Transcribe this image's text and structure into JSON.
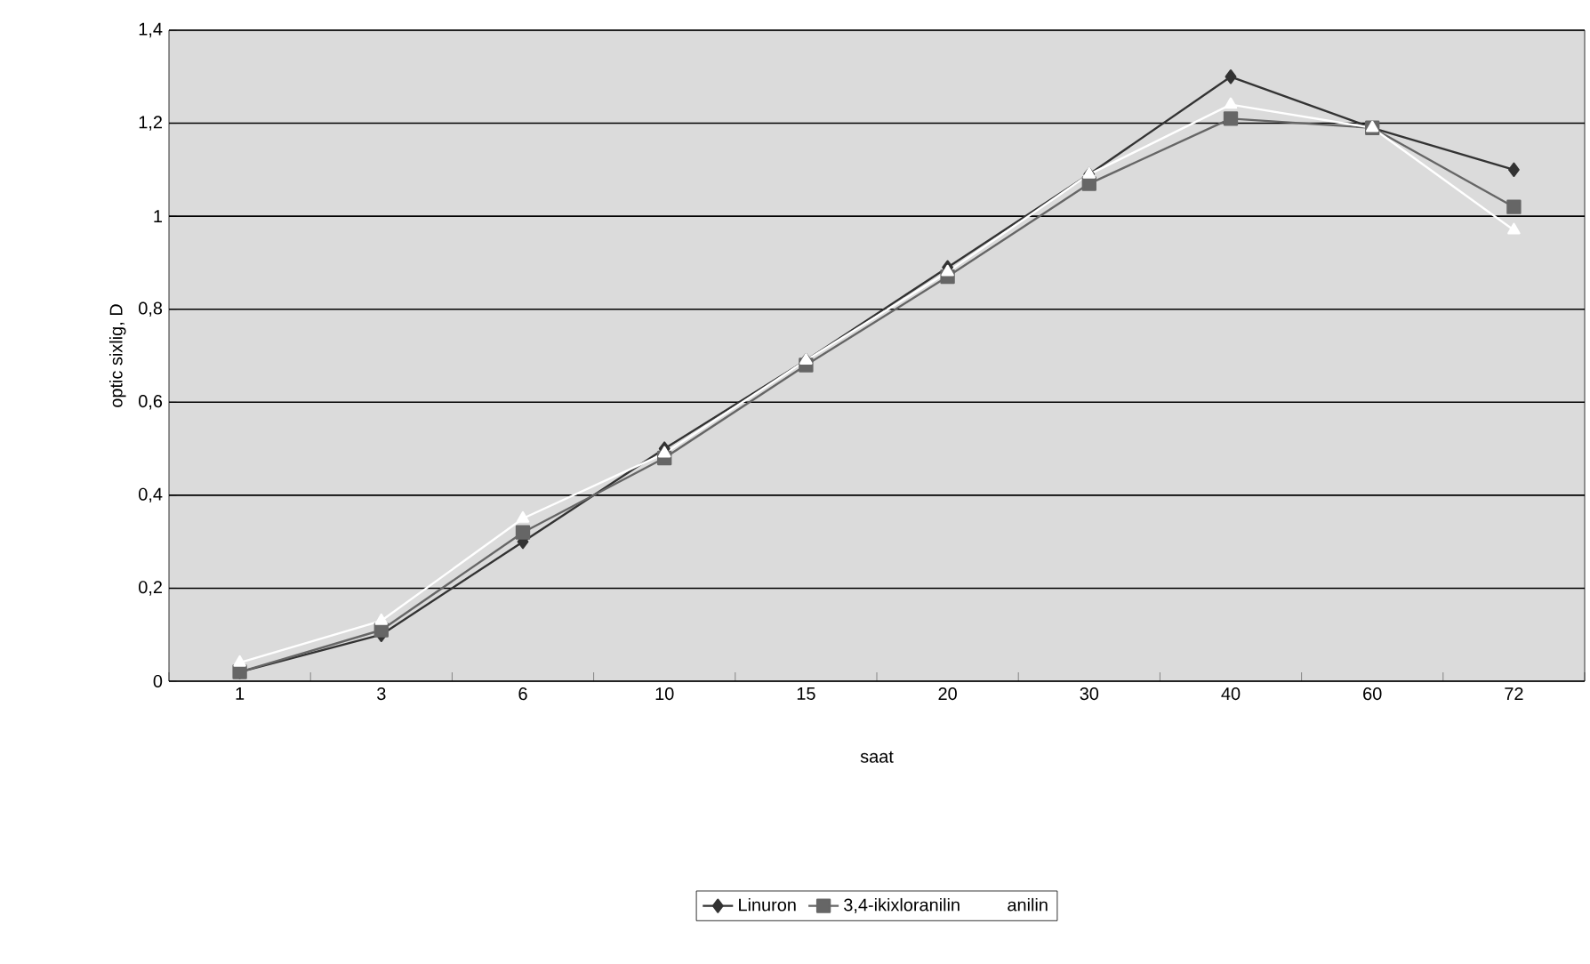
{
  "chart_data": {
    "type": "line",
    "xlabel": "saat",
    "ylabel": "optic sixlig, D",
    "categories": [
      "1",
      "3",
      "6",
      "10",
      "15",
      "20",
      "30",
      "40",
      "60",
      "72"
    ],
    "series": [
      {
        "name": "Linuron",
        "color": "#333333",
        "marker": "diamond",
        "values": [
          0.02,
          0.1,
          0.3,
          0.5,
          0.69,
          0.89,
          1.09,
          1.3,
          1.19,
          1.1
        ]
      },
      {
        "name": "3,4-ikixloranilin",
        "color": "#666666",
        "marker": "square",
        "values": [
          0.02,
          0.11,
          0.32,
          0.48,
          0.68,
          0.87,
          1.07,
          1.21,
          1.19,
          1.02
        ]
      },
      {
        "name": "anilin",
        "color": "#ffffff",
        "marker": "triangle",
        "values": [
          0.04,
          0.13,
          0.35,
          0.49,
          0.69,
          0.88,
          1.09,
          1.24,
          1.19,
          0.97
        ]
      }
    ],
    "ylim": [
      0,
      1.4
    ],
    "yticks": [
      0,
      {
        "value": 0.2,
        "label": "0,2"
      },
      {
        "value": 0.4,
        "label": "0,4"
      },
      {
        "value": 0.6,
        "label": "0,6"
      },
      {
        "value": 0.8,
        "label": "0,8"
      },
      1,
      {
        "value": 1.2,
        "label": "1,2"
      },
      {
        "value": 1.4,
        "label": "1,4"
      }
    ],
    "grid": "y",
    "legend": "bottom"
  }
}
